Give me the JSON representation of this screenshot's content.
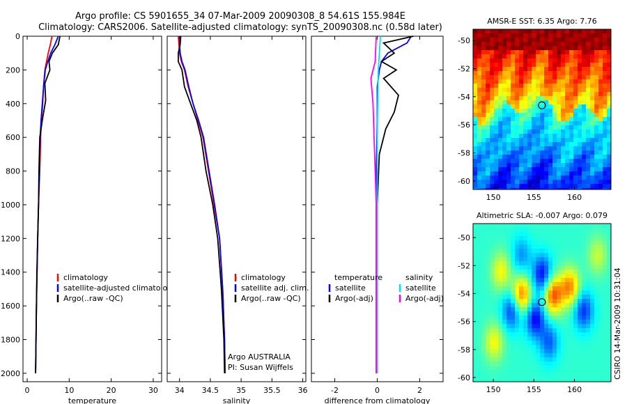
{
  "header": {
    "line1": "Argo profile: CS 5901655_34 07-Mar-2009 20090308_8 54.61S 155.984E",
    "line2": "Climatology: CARS2006. Satellite-adjusted climatology: synTS_20090308.nc (0.58d later)"
  },
  "side_text": "CSIRO 14-Mar-2009 10:31:04",
  "colors": {
    "clim": "#ff0000",
    "sat": "#0000ff",
    "argo": "#000000",
    "sal_sat": "#00e5e5",
    "sal_argo": "#ff00ff"
  },
  "chart_data": [
    {
      "type": "line",
      "id": "temperature",
      "xlabel": "temperature",
      "xlim": [
        -1,
        32
      ],
      "ylim": [
        2050,
        0
      ],
      "xticks": [
        "0",
        "10",
        "20",
        "30"
      ],
      "xtick_vals": [
        0,
        10,
        20,
        30
      ],
      "yticks": [
        "0",
        "200",
        "400",
        "600",
        "800",
        "1000",
        "1200",
        "1400",
        "1600",
        "1800",
        "2000"
      ],
      "ytick_vals": [
        0,
        200,
        400,
        600,
        800,
        1000,
        1200,
        1400,
        1600,
        1800,
        2000
      ],
      "legend": [
        "climatology",
        "satellite-adjusted climatology",
        "Argo(..raw -QC)"
      ],
      "series": [
        {
          "name": "climatology",
          "color": "#ff0000",
          "x": [
            5.9,
            5.5,
            5.0,
            4.6,
            4.2,
            3.9,
            3.7,
            3.4,
            3.2,
            3.0,
            2.7,
            2.5,
            2.2,
            2.0
          ],
          "y": [
            0,
            50,
            100,
            150,
            200,
            300,
            400,
            500,
            600,
            800,
            1000,
            1200,
            1600,
            2000
          ]
        },
        {
          "name": "satellite-adjusted climatology",
          "color": "#0000ff",
          "x": [
            7.4,
            6.6,
            5.6,
            4.9,
            4.3,
            3.9,
            3.6,
            3.3,
            3.1,
            2.9,
            2.7,
            2.5,
            2.2,
            2.0
          ],
          "y": [
            0,
            50,
            100,
            150,
            200,
            300,
            400,
            500,
            600,
            800,
            1000,
            1200,
            1600,
            2000
          ]
        },
        {
          "name": "Argo(..raw -QC)",
          "color": "#000000",
          "x": [
            7.8,
            7.4,
            6.0,
            5.2,
            5.4,
            4.2,
            4.4,
            3.6,
            3.0,
            2.8,
            2.7,
            2.5,
            2.3,
            2.1,
            2.0
          ],
          "y": [
            0,
            50,
            100,
            150,
            200,
            280,
            380,
            500,
            600,
            800,
            1000,
            1200,
            1400,
            1800,
            2000
          ]
        }
      ]
    },
    {
      "type": "line",
      "id": "salinity",
      "xlabel": "salinity",
      "xlim": [
        33.8,
        36.05
      ],
      "ylim": [
        2050,
        0
      ],
      "xticks": [
        "34",
        "34.5",
        "35",
        "35.5",
        "36"
      ],
      "xtick_vals": [
        34,
        34.5,
        35,
        35.5,
        36
      ],
      "legend": [
        "climatology",
        "satellite adj. clim.",
        "Argo(..raw -QC)"
      ],
      "annotation": [
        "Argo AUSTRALIA",
        "PI: Susan Wijffels"
      ],
      "series": [
        {
          "name": "climatology",
          "color": "#ff0000",
          "x": [
            33.98,
            33.99,
            34.0,
            34.03,
            34.08,
            34.14,
            34.22,
            34.3,
            34.38,
            34.47,
            34.56,
            34.65,
            34.7,
            34.73,
            34.74
          ],
          "y": [
            0,
            50,
            100,
            150,
            200,
            300,
            400,
            500,
            600,
            800,
            1000,
            1200,
            1500,
            1800,
            2000
          ]
        },
        {
          "name": "satellite adj. clim.",
          "color": "#0000ff",
          "x": [
            34.0,
            34.0,
            34.01,
            34.04,
            34.09,
            34.15,
            34.22,
            34.31,
            34.39,
            34.48,
            34.57,
            34.65,
            34.7,
            34.73,
            34.74
          ],
          "y": [
            0,
            50,
            100,
            150,
            200,
            300,
            400,
            500,
            600,
            800,
            1000,
            1200,
            1500,
            1800,
            2000
          ]
        },
        {
          "name": "Argo(..raw -QC)",
          "color": "#000000",
          "x": [
            34.02,
            34.01,
            33.98,
            33.98,
            34.04,
            34.08,
            34.18,
            34.28,
            34.35,
            34.43,
            34.54,
            34.62,
            34.68,
            34.72,
            34.73
          ],
          "y": [
            0,
            50,
            100,
            150,
            200,
            300,
            400,
            500,
            600,
            800,
            1000,
            1200,
            1500,
            1800,
            2000
          ]
        }
      ]
    },
    {
      "type": "line",
      "id": "difference",
      "xlabel": "difference from climatology",
      "xlim": [
        -3.1,
        3.1
      ],
      "ylim": [
        2050,
        0
      ],
      "xticks": [
        "-2",
        "0",
        "2"
      ],
      "xtick_vals": [
        -2,
        0,
        2
      ],
      "legend_temperature": [
        "temperature",
        "satellite",
        "Argo(-adj)"
      ],
      "legend_salinity": [
        "salinity",
        "satellite",
        "Argo(-adj)"
      ],
      "series": [
        {
          "name": "temperature satellite",
          "color": "#0000ff",
          "x": [
            1.6,
            1.4,
            0.5,
            0.2,
            0.1,
            0.0,
            0.0,
            0.0,
            -0.05,
            -0.05,
            -0.05,
            -0.05,
            -0.05
          ],
          "y": [
            0,
            40,
            100,
            150,
            200,
            300,
            400,
            500,
            800,
            1000,
            1400,
            1800,
            2000
          ]
        },
        {
          "name": "temperature Argo(-adj)",
          "color": "#000000",
          "x": [
            1.7,
            0.3,
            0.8,
            0.2,
            0.9,
            0.3,
            1.0,
            0.8,
            0.4,
            0.1,
            0.0,
            0.0,
            0.0
          ],
          "y": [
            0,
            40,
            100,
            150,
            200,
            250,
            350,
            450,
            550,
            700,
            1000,
            1500,
            2000
          ]
        },
        {
          "name": "salinity satellite",
          "color": "#00e5e5",
          "x": [
            0.15,
            0.1,
            0.05,
            0.02,
            0.0,
            0.0,
            0.0,
            0.0,
            0.0
          ],
          "y": [
            0,
            100,
            200,
            400,
            600,
            1000,
            1400,
            1800,
            2000
          ]
        },
        {
          "name": "salinity Argo(-adj)",
          "color": "#ff00ff",
          "x": [
            -0.05,
            -0.1,
            -0.3,
            -0.2,
            -0.15,
            -0.1,
            -0.05,
            -0.05,
            -0.05
          ],
          "y": [
            0,
            150,
            250,
            400,
            600,
            800,
            1000,
            1500,
            2000
          ]
        }
      ]
    },
    {
      "type": "heatmap",
      "id": "sst_map",
      "title": "AMSR-E SST: 6.35 Argo: 7.76",
      "xticks": [
        "150",
        "155",
        "160"
      ],
      "xtick_vals": [
        150,
        155,
        160
      ],
      "yticks": [
        "-50",
        "-52",
        "-54",
        "-56",
        "-58",
        "-60"
      ],
      "ytick_vals": [
        -50,
        -52,
        -54,
        -56,
        -58,
        -60
      ],
      "xlim": [
        147.5,
        164.5
      ],
      "ylim": [
        -60.6,
        -49.2
      ],
      "argo_position": {
        "lon": 155.984,
        "lat": -54.61
      }
    },
    {
      "type": "heatmap",
      "id": "sla_map",
      "title": "Altimetric SLA: -0.007 Argo: 0.079",
      "xticks": [
        "150",
        "155",
        "160"
      ],
      "xtick_vals": [
        150,
        155,
        160
      ],
      "yticks": [
        "-50",
        "-52",
        "-54",
        "-56",
        "-58",
        "-60"
      ],
      "ytick_vals": [
        -50,
        -52,
        -54,
        -56,
        -58,
        -60
      ],
      "xlim": [
        147.5,
        164.5
      ],
      "ylim": [
        -60.3,
        -49.0
      ],
      "argo_position": {
        "lon": 155.984,
        "lat": -54.61
      }
    }
  ]
}
